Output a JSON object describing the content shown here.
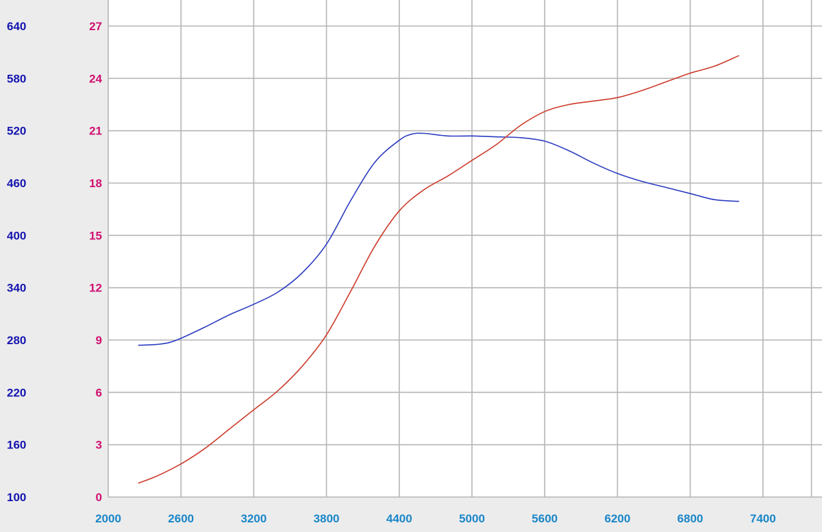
{
  "chart_data": {
    "type": "line",
    "title": "",
    "xlabel": "",
    "ylabel": "",
    "x_ticks": [
      2000,
      2600,
      3200,
      3800,
      4400,
      5000,
      5600,
      6200,
      6800,
      7400
    ],
    "xlim": [
      2000,
      7800
    ],
    "y_left_ticks": [
      100,
      160,
      220,
      280,
      340,
      400,
      460,
      520,
      580,
      640
    ],
    "y_left_lim": [
      100,
      640
    ],
    "y_right_ticks": [
      0,
      3,
      6,
      9,
      12,
      15,
      18,
      21,
      24,
      27
    ],
    "y_right_lim": [
      0,
      27
    ],
    "grid": true,
    "colors": {
      "background": "#ffffff",
      "grid": "#b5b5b5",
      "left_axis_text": "#1515b0",
      "right_axis_text": "#d01070",
      "x_axis_text": "#1a86c8",
      "series_blue": "#2c3cc0",
      "series_red": "#cc3a2a"
    },
    "series": [
      {
        "axis": "left",
        "color": "#2c3cc0",
        "points": [
          [
            2250,
            274
          ],
          [
            2400,
            275
          ],
          [
            2500,
            277
          ],
          [
            2600,
            282
          ],
          [
            2800,
            295
          ],
          [
            3000,
            309
          ],
          [
            3200,
            321
          ],
          [
            3400,
            335
          ],
          [
            3600,
            357
          ],
          [
            3800,
            390
          ],
          [
            4000,
            440
          ],
          [
            4200,
            484
          ],
          [
            4400,
            509
          ],
          [
            4500,
            516
          ],
          [
            4600,
            517
          ],
          [
            4800,
            514
          ],
          [
            5000,
            514
          ],
          [
            5200,
            513
          ],
          [
            5400,
            512
          ],
          [
            5600,
            508
          ],
          [
            5800,
            497
          ],
          [
            6000,
            483
          ],
          [
            6200,
            471
          ],
          [
            6400,
            462
          ],
          [
            6600,
            455
          ],
          [
            6800,
            448
          ],
          [
            7000,
            441
          ],
          [
            7200,
            439
          ]
        ]
      },
      {
        "axis": "right",
        "color": "#cc3a2a",
        "points": [
          [
            2250,
            0.8
          ],
          [
            2400,
            1.2
          ],
          [
            2600,
            1.9
          ],
          [
            2800,
            2.8
          ],
          [
            3000,
            3.9
          ],
          [
            3200,
            5.0
          ],
          [
            3400,
            6.1
          ],
          [
            3600,
            7.5
          ],
          [
            3800,
            9.3
          ],
          [
            4000,
            11.8
          ],
          [
            4200,
            14.4
          ],
          [
            4400,
            16.4
          ],
          [
            4600,
            17.6
          ],
          [
            4800,
            18.4
          ],
          [
            5000,
            19.3
          ],
          [
            5200,
            20.2
          ],
          [
            5400,
            21.3
          ],
          [
            5600,
            22.1
          ],
          [
            5800,
            22.5
          ],
          [
            6000,
            22.7
          ],
          [
            6200,
            22.9
          ],
          [
            6400,
            23.3
          ],
          [
            6600,
            23.8
          ],
          [
            6800,
            24.3
          ],
          [
            7000,
            24.7
          ],
          [
            7200,
            25.3
          ]
        ]
      }
    ]
  }
}
